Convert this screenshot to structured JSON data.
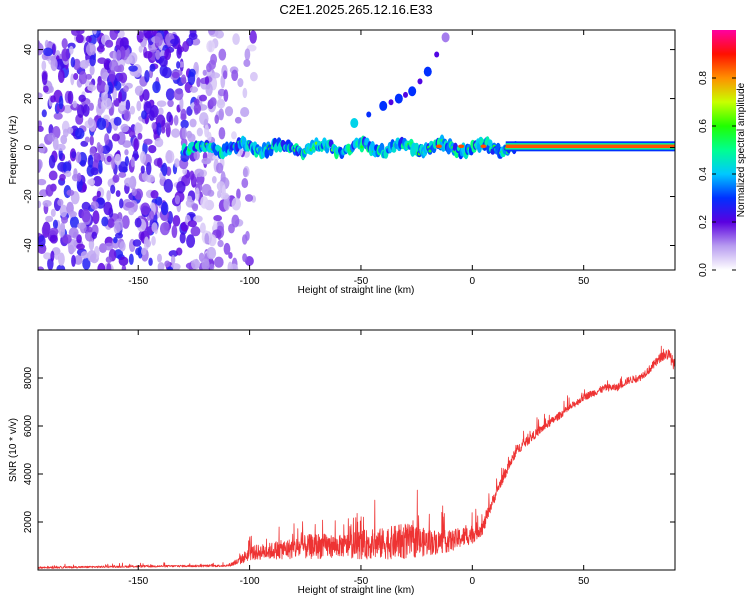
{
  "title": "C2E1.2025.265.12.16.E33",
  "chart_data": [
    {
      "type": "heatmap",
      "xlabel": "Height of straight line (km)",
      "ylabel": "Frequency (Hz)",
      "xlim": [
        -195,
        91
      ],
      "ylim": [
        -50,
        48
      ],
      "xticks": [
        -150,
        -100,
        -50,
        0,
        50
      ],
      "yticks": [
        -40,
        -20,
        0,
        20,
        40
      ],
      "colorbar": {
        "label": "Normalized spectral amplitude",
        "range": [
          0,
          1
        ],
        "ticks": [
          0.0,
          0.2,
          0.4,
          0.6,
          0.8
        ],
        "tick_labels": [
          "0.0",
          "0.2",
          "0.4",
          "0.6",
          "0.8"
        ]
      },
      "features": [
        {
          "name": "broadband noise",
          "x_range": [
            -195,
            -110
          ],
          "freq_range": [
            -50,
            48
          ],
          "amplitude": 0.15
        },
        {
          "name": "main echo trace",
          "x_range": [
            -130,
            20
          ],
          "freq_center": 0,
          "amplitude": 0.35
        },
        {
          "name": "strong echo trace",
          "x_range": [
            15,
            91
          ],
          "freq_center": 0.5,
          "amplitude": 0.85
        },
        {
          "name": "secondary trace",
          "points": [
            [
              -53,
              10
            ],
            [
              -40,
              17
            ],
            [
              -33,
              20
            ],
            [
              -27,
              23
            ],
            [
              -20,
              31
            ],
            [
              -12,
              45
            ]
          ],
          "amplitude": 0.3
        }
      ]
    },
    {
      "type": "line",
      "xlabel": "Height of straight line (km)",
      "ylabel": "SNR (10 * v/v)",
      "xlim": [
        -195,
        91
      ],
      "ylim": [
        0,
        10000
      ],
      "xticks": [
        -150,
        -100,
        -50,
        0,
        50
      ],
      "yticks": [
        2000,
        4000,
        6000,
        8000
      ],
      "series": [
        {
          "name": "SNR",
          "color": "#ee3333",
          "x": [
            -195,
            -150,
            -110,
            -105,
            -100,
            -90,
            -80,
            -70,
            -60,
            -50,
            -40,
            -30,
            -20,
            -10,
            0,
            5,
            8,
            12,
            20,
            30,
            40,
            50,
            55,
            60,
            65,
            70,
            75,
            80,
            85,
            88,
            91
          ],
          "mean": [
            100,
            150,
            180,
            350,
            700,
            800,
            900,
            1000,
            1000,
            1050,
            1100,
            1200,
            1150,
            1200,
            1500,
            1800,
            2600,
            3500,
            5000,
            5800,
            6500,
            7200,
            7400,
            7600,
            7600,
            7900,
            8000,
            8400,
            8900,
            9000,
            8500
          ],
          "jitter": [
            80,
            80,
            90,
            300,
            600,
            700,
            900,
            1100,
            900,
            1200,
            1300,
            1500,
            1100,
            900,
            800,
            600,
            500,
            400,
            400,
            350,
            300,
            300,
            300,
            300,
            300,
            300,
            300,
            350,
            400,
            500,
            500
          ]
        }
      ]
    }
  ]
}
